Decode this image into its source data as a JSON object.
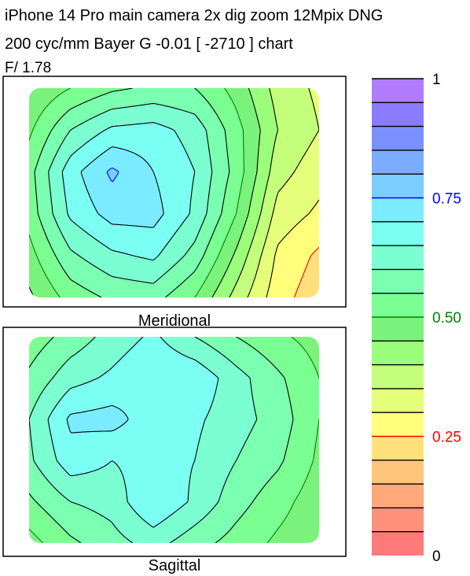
{
  "header": {
    "line1": "iPhone 14 Pro main camera 2x dig zoom 12Mpix DNG",
    "line2": "200 cyc/mm  Bayer G   -0.01   [ -2710 ] chart",
    "line3": "F/ 1.78"
  },
  "chart_data": [
    {
      "type": "heatmap",
      "title": "Meridional",
      "grid": [
        [
          0.45,
          0.5,
          0.54,
          0.56,
          0.55,
          0.48,
          0.38,
          0.34
        ],
        [
          0.49,
          0.6,
          0.66,
          0.67,
          0.63,
          0.52,
          0.4,
          0.35
        ],
        [
          0.53,
          0.68,
          0.76,
          0.7,
          0.65,
          0.53,
          0.37,
          0.32
        ],
        [
          0.52,
          0.66,
          0.72,
          0.72,
          0.64,
          0.5,
          0.33,
          0.29
        ],
        [
          0.48,
          0.59,
          0.64,
          0.66,
          0.58,
          0.44,
          0.29,
          0.24
        ],
        [
          0.44,
          0.52,
          0.56,
          0.57,
          0.5,
          0.38,
          0.27,
          0.22
        ]
      ],
      "zlim": [
        0,
        1
      ]
    },
    {
      "type": "heatmap",
      "title": "Sagittal",
      "grid": [
        [
          0.52,
          0.57,
          0.62,
          0.66,
          0.6,
          0.55,
          0.51,
          0.48
        ],
        [
          0.56,
          0.63,
          0.66,
          0.7,
          0.69,
          0.62,
          0.56,
          0.5
        ],
        [
          0.6,
          0.71,
          0.72,
          0.67,
          0.66,
          0.62,
          0.58,
          0.5
        ],
        [
          0.59,
          0.68,
          0.65,
          0.67,
          0.65,
          0.6,
          0.56,
          0.49
        ],
        [
          0.54,
          0.6,
          0.62,
          0.7,
          0.64,
          0.57,
          0.52,
          0.47
        ],
        [
          0.48,
          0.54,
          0.58,
          0.62,
          0.57,
          0.53,
          0.49,
          0.46
        ]
      ],
      "zlim": [
        0,
        1
      ]
    }
  ],
  "colorbar": {
    "levels": 20,
    "range": [
      0,
      1
    ],
    "colors": [
      "#ff7b7b",
      "#ff917b",
      "#ffa97b",
      "#ffc57b",
      "#ffe07b",
      "#ffff7b",
      "#e6ff7b",
      "#c4ff7b",
      "#9cff7b",
      "#7bf27b",
      "#7bff92",
      "#7bffb0",
      "#7bffd2",
      "#7bfff3",
      "#7bebff",
      "#7bccff",
      "#7bacff",
      "#7b90ff",
      "#8a7bff",
      "#b07bff"
    ],
    "ticks": [
      {
        "value": 1,
        "label": "1",
        "color": "#000000"
      },
      {
        "value": 0.75,
        "label": "0.75",
        "color": "#0000ff"
      },
      {
        "value": 0.5,
        "label": "0.50",
        "color": "#008000"
      },
      {
        "value": 0.25,
        "label": "0.25",
        "color": "#ff0000"
      },
      {
        "value": 0,
        "label": "0",
        "color": "#000000"
      }
    ]
  }
}
